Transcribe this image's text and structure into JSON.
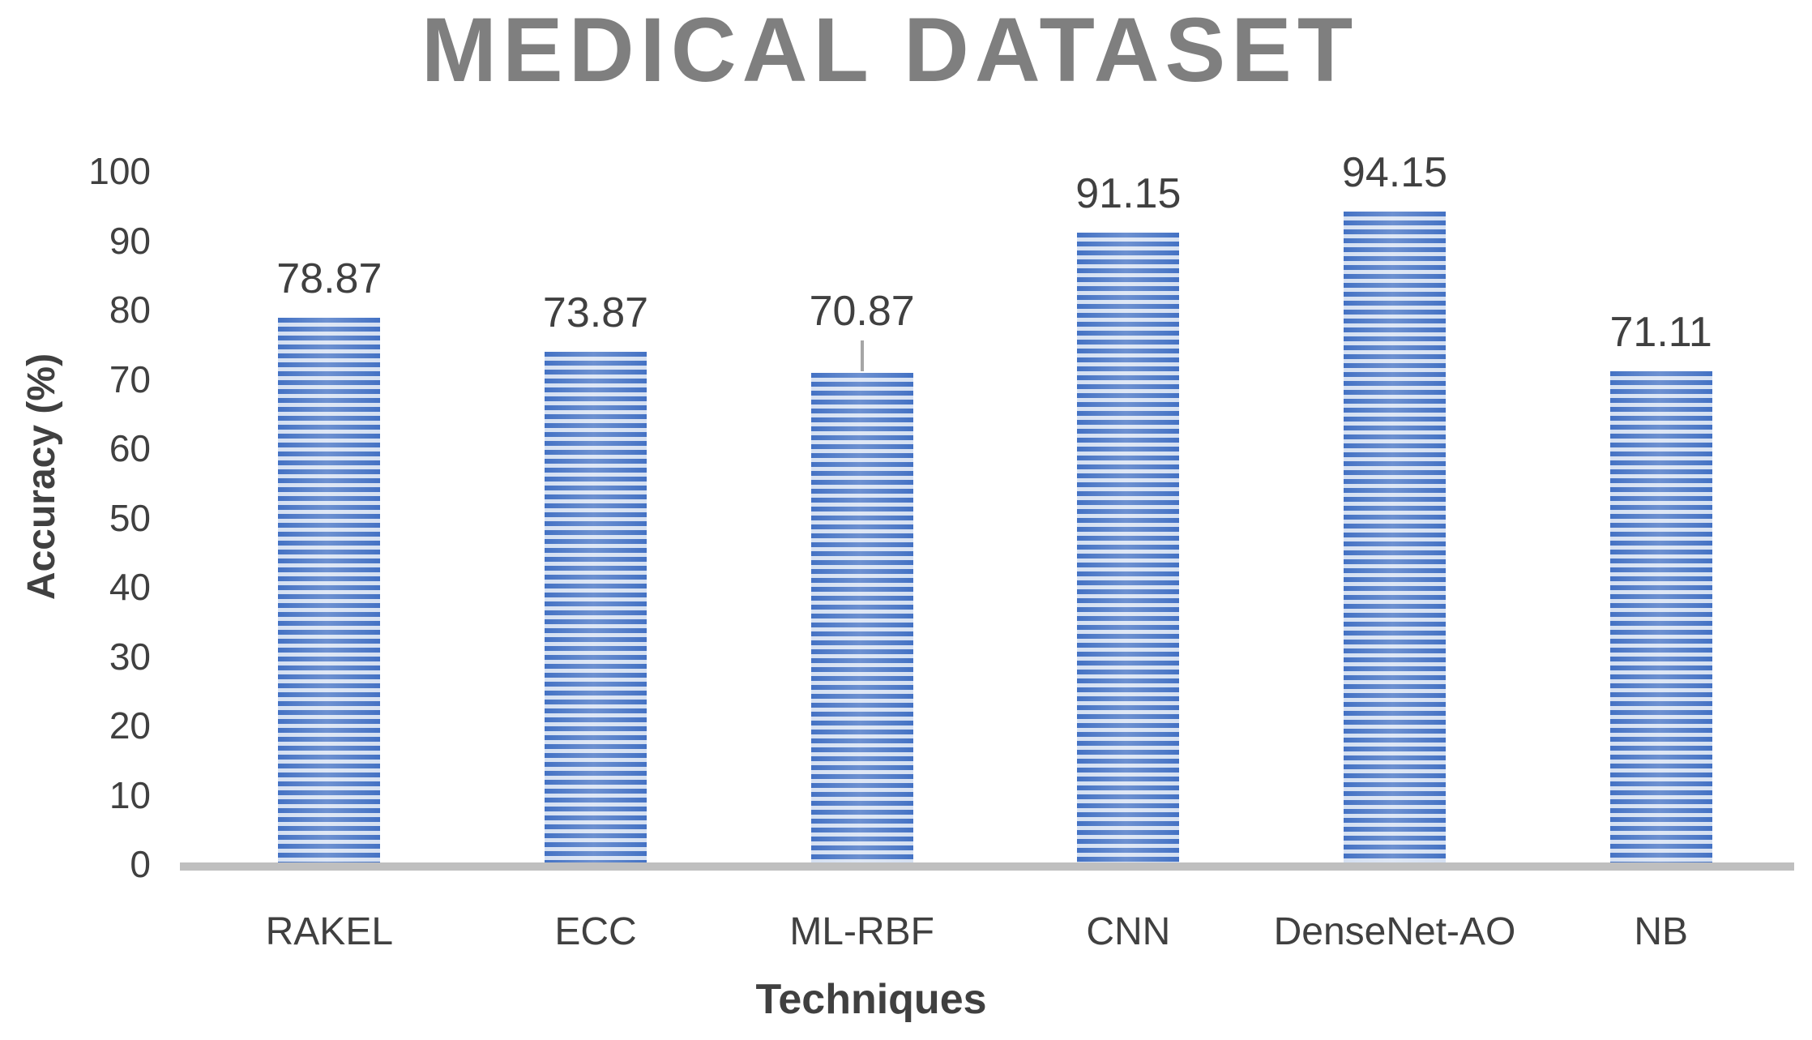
{
  "chart_data": {
    "type": "bar",
    "title": "MEDICAL DATASET",
    "xlabel": "Techniques",
    "ylabel": "Accuracy (%)",
    "categories": [
      "RAKEL",
      "ECC",
      "ML-RBF",
      "CNN",
      "DenseNet-AO",
      "NB"
    ],
    "values": [
      78.87,
      73.87,
      70.87,
      91.15,
      94.15,
      71.11
    ],
    "data_labels": [
      "78.87",
      "73.87",
      "70.87",
      "91.15",
      "94.15",
      "71.11"
    ],
    "ylim": [
      0,
      100
    ],
    "yticks": [
      0,
      10,
      20,
      30,
      40,
      50,
      60,
      70,
      80,
      90,
      100
    ],
    "grid": false,
    "legend": "none",
    "label_with_leader_line": "ML-RBF",
    "colors": {
      "bar_stripe_dark": "#4472C4",
      "bar_stripe_light": "#D5E0F2",
      "axis_line": "#BFBFBF",
      "title_text": "#7F7F7F",
      "label_text": "#404040",
      "leader_line": "#A6A6A6"
    }
  }
}
